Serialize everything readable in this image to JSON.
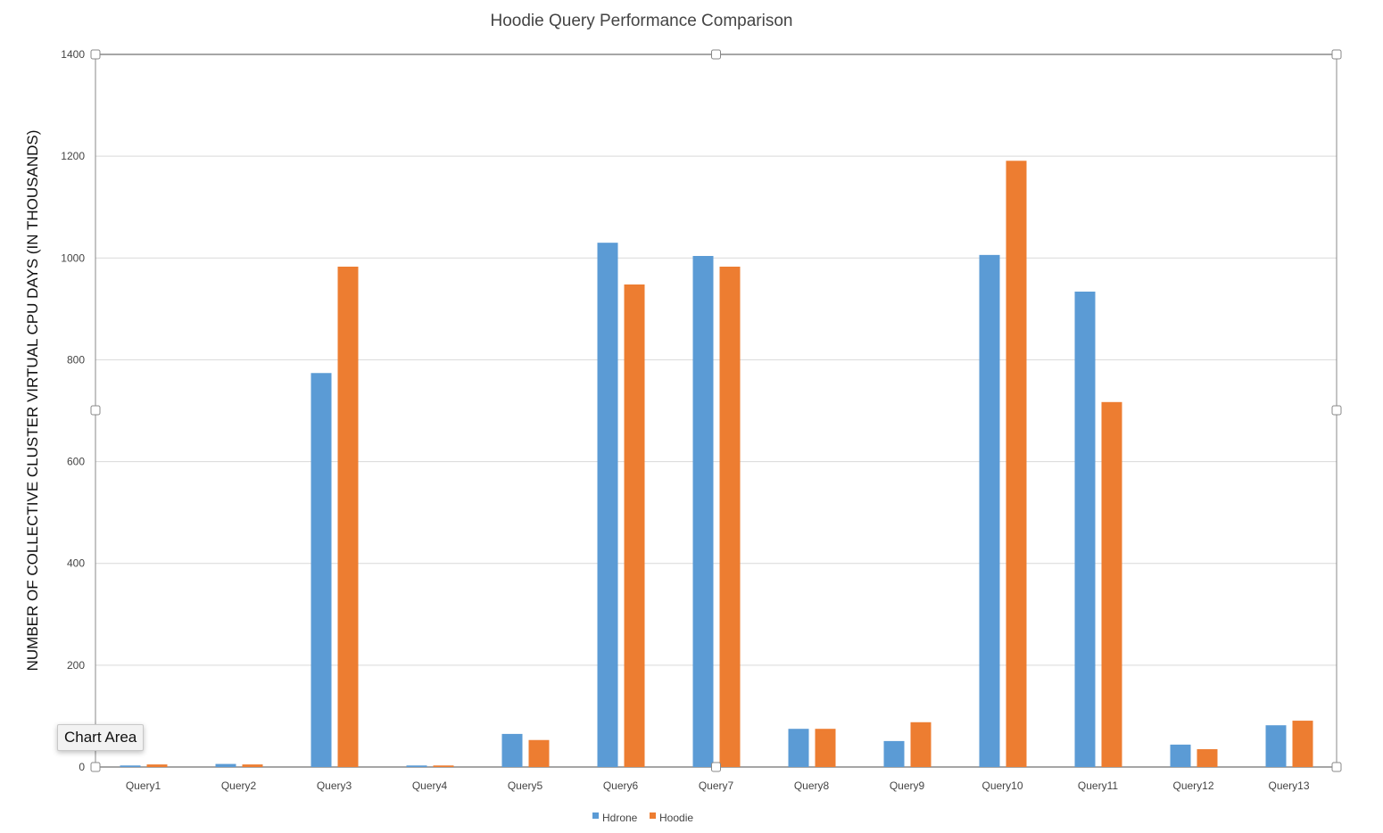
{
  "chart_data": {
    "type": "bar",
    "title": "Hoodie Query Performance Comparison",
    "xlabel": "",
    "ylabel": "NUMBER OF COLLECTIVE CLUSTER VIRTUAL CPU DAYS (IN THOUSANDS)",
    "ylim": [
      0,
      1400
    ],
    "yticks": [
      0,
      200,
      400,
      600,
      800,
      1000,
      1200,
      1400
    ],
    "grid": true,
    "legend": "bottom",
    "categories": [
      "Query1",
      "Query2",
      "Query3",
      "Query4",
      "Query5",
      "Query6",
      "Query7",
      "Query8",
      "Query9",
      "Query10",
      "Query11",
      "Query12",
      "Query13"
    ],
    "series": [
      {
        "name": "Hdrone",
        "color": "#5b9bd5",
        "values": [
          3,
          6,
          774,
          3,
          65,
          1030,
          1004,
          75,
          51,
          1006,
          934,
          44,
          82
        ]
      },
      {
        "name": "Hoodie",
        "color": "#ed7d31",
        "values": [
          5,
          5,
          983,
          3,
          53,
          948,
          983,
          75,
          88,
          1191,
          717,
          35,
          91
        ]
      }
    ]
  },
  "tooltip": {
    "text": "Chart Area"
  }
}
